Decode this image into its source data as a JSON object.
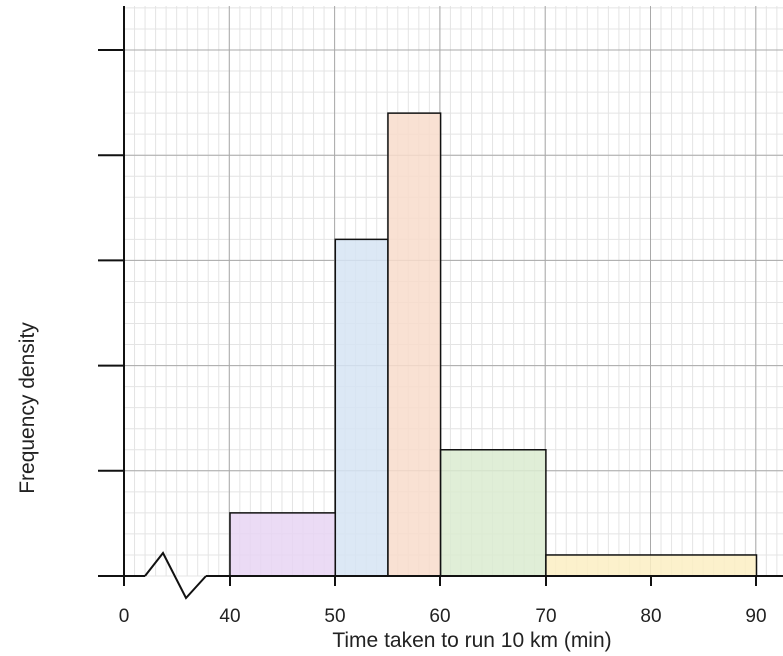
{
  "chart_data": {
    "type": "histogram",
    "xlabel": "Time taken to run 10 km (min)",
    "ylabel": "Frequency density",
    "x_ticks": [
      "0",
      "40",
      "50",
      "60",
      "70",
      "80",
      "90"
    ],
    "x_axis_break": true,
    "grid": true,
    "bars": [
      {
        "x_start": 40,
        "x_end": 50,
        "height": 0.6,
        "color": "#e7d5f3"
      },
      {
        "x_start": 50,
        "x_end": 55,
        "height": 3.2,
        "color": "#d6e4f3"
      },
      {
        "x_start": 55,
        "x_end": 60,
        "height": 4.4,
        "color": "#f8dccb"
      },
      {
        "x_start": 60,
        "x_end": 70,
        "height": 1.2,
        "color": "#dbebd0"
      },
      {
        "x_start": 70,
        "x_end": 90,
        "height": 0.2,
        "color": "#fbeec3"
      }
    ]
  }
}
